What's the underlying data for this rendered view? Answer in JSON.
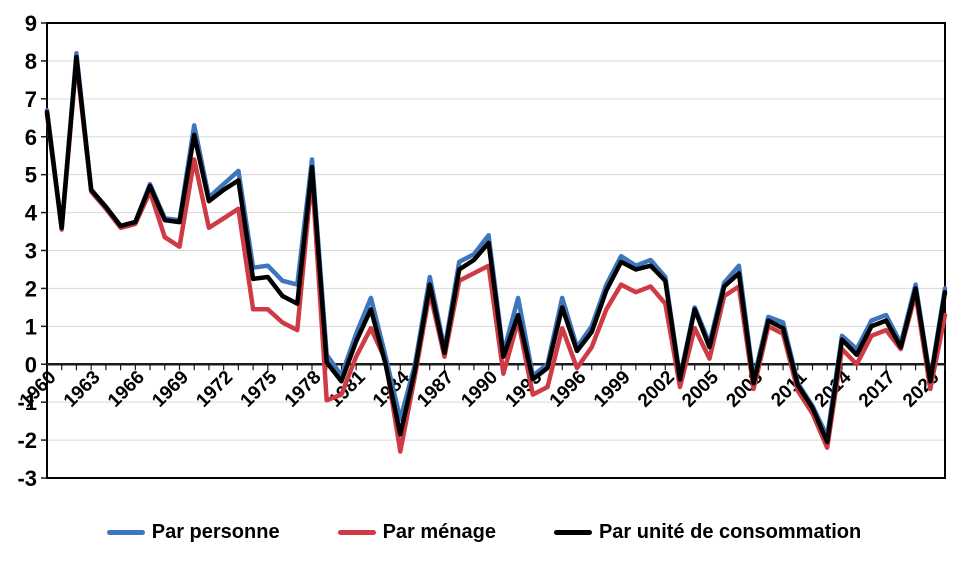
{
  "chart_data": {
    "type": "line",
    "title": "",
    "xlabel": "",
    "ylabel": "",
    "ylim": [
      -3,
      9
    ],
    "grid": true,
    "legend_position": "bottom",
    "background_color": "#FFFFFF",
    "gridline_color": "#D9D9D9",
    "axis_color": "#1A1A1A",
    "frame_color": "#000000",
    "y_ticks": [
      9,
      8,
      7,
      6,
      5,
      4,
      3,
      2,
      1,
      0,
      -1,
      -2,
      -3
    ],
    "x_tick_labels": [
      "1960",
      "1963",
      "1966",
      "1969",
      "1972",
      "1975",
      "1978",
      "1981",
      "1984",
      "1987",
      "1990",
      "1993",
      "1996",
      "1999",
      "2002",
      "2005",
      "2008",
      "2011",
      "2014",
      "2017",
      "2020"
    ],
    "x_tick_step": 3,
    "years": [
      1960,
      1961,
      1962,
      1963,
      1964,
      1965,
      1966,
      1967,
      1968,
      1969,
      1970,
      1971,
      1972,
      1973,
      1974,
      1975,
      1976,
      1977,
      1978,
      1979,
      1980,
      1981,
      1982,
      1983,
      1984,
      1985,
      1986,
      1987,
      1988,
      1989,
      1990,
      1991,
      1992,
      1993,
      1994,
      1995,
      1996,
      1997,
      1998,
      1999,
      2000,
      2001,
      2002,
      2003,
      2004,
      2005,
      2006,
      2007,
      2008,
      2009,
      2010,
      2011,
      2012,
      2013,
      2014,
      2015,
      2016,
      2017,
      2018,
      2019,
      2020,
      2021
    ],
    "draw_order": [
      1,
      0,
      2
    ],
    "series": [
      {
        "name": "Par personne",
        "color": "#3E76BE",
        "values": [
          6.7,
          3.6,
          8.2,
          4.6,
          4.15,
          3.65,
          3.75,
          4.75,
          3.85,
          3.8,
          6.3,
          4.4,
          4.75,
          5.1,
          2.55,
          2.6,
          2.2,
          2.1,
          5.4,
          0.25,
          -0.3,
          0.8,
          1.75,
          0.2,
          -1.45,
          0.0,
          2.3,
          0.4,
          2.7,
          2.9,
          3.4,
          0.3,
          1.75,
          -0.3,
          0.0,
          1.75,
          0.45,
          1.0,
          2.1,
          2.85,
          2.6,
          2.75,
          2.3,
          -0.35,
          1.5,
          0.55,
          2.15,
          2.6,
          -0.4,
          1.25,
          1.1,
          -0.5,
          -1.1,
          -1.9,
          0.75,
          0.4,
          1.15,
          1.3,
          0.55,
          2.1,
          -0.4,
          2.0
        ]
      },
      {
        "name": "Par ménage",
        "color": "#CE3B45",
        "values": [
          6.6,
          3.55,
          8.0,
          4.55,
          4.1,
          3.6,
          3.7,
          4.55,
          3.35,
          3.1,
          5.4,
          3.6,
          3.85,
          4.1,
          1.45,
          1.45,
          1.1,
          0.9,
          5.0,
          -0.95,
          -0.8,
          0.2,
          0.95,
          0.1,
          -2.3,
          -0.3,
          1.9,
          0.2,
          2.2,
          2.4,
          2.6,
          -0.25,
          1.15,
          -0.8,
          -0.6,
          0.95,
          -0.1,
          0.45,
          1.45,
          2.1,
          1.9,
          2.05,
          1.6,
          -0.6,
          0.95,
          0.15,
          1.8,
          2.05,
          -0.65,
          1.0,
          0.8,
          -0.7,
          -1.3,
          -2.2,
          0.4,
          0.0,
          0.75,
          0.9,
          0.4,
          1.85,
          -0.65,
          1.3
        ]
      },
      {
        "name": "Par unité de consommation",
        "color": "#000000",
        "values": [
          6.65,
          3.6,
          8.1,
          4.6,
          4.15,
          3.65,
          3.75,
          4.7,
          3.8,
          3.75,
          6.05,
          4.3,
          4.6,
          4.85,
          2.25,
          2.3,
          1.8,
          1.6,
          5.2,
          0.05,
          -0.45,
          0.6,
          1.45,
          0.0,
          -1.85,
          -0.15,
          2.1,
          0.3,
          2.5,
          2.75,
          3.2,
          0.2,
          1.3,
          -0.4,
          -0.1,
          1.5,
          0.35,
          0.85,
          1.95,
          2.7,
          2.5,
          2.6,
          2.2,
          -0.4,
          1.45,
          0.45,
          2.05,
          2.4,
          -0.5,
          1.15,
          0.95,
          -0.55,
          -1.15,
          -2.05,
          0.65,
          0.25,
          1.0,
          1.15,
          0.45,
          2.0,
          -0.45,
          1.9
        ]
      }
    ]
  }
}
